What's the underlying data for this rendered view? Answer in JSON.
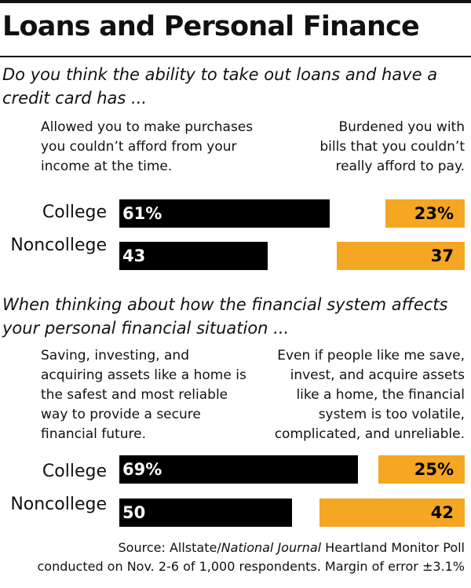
{
  "title": "Loans and Personal Finance",
  "source": {
    "prefix": "Source: Allstate/",
    "italic": "National Journal",
    "suffix": " Heartland Monitor Poll",
    "line2": "conducted on Nov. 2-6 of 1,000 respondents. Margin of error ±3.1%"
  },
  "colors": {
    "left_bar": "#000000",
    "right_bar": "#f5a623"
  },
  "chart_data": [
    {
      "type": "bar",
      "title": "Do you think the ability to take out loans and have a credit card has ...",
      "categories": [
        "College",
        "Noncollege"
      ],
      "series": [
        {
          "name": "Allowed you to make purchases you couldn’t afford from your income at the time.",
          "values": [
            61,
            43
          ],
          "labels": [
            "61%",
            "43"
          ]
        },
        {
          "name": "Burdened you with bills that you couldn’t really afford to pay.",
          "values": [
            23,
            37
          ],
          "labels": [
            "23%",
            "37"
          ]
        }
      ],
      "unit": "%"
    },
    {
      "type": "bar",
      "title": "When thinking about how the financial system affects your personal financial situation ...",
      "categories": [
        "College",
        "Noncollege"
      ],
      "series": [
        {
          "name": "Saving, investing, and acquiring assets like a home is the safest and most reliable way to provide a secure financial future.",
          "values": [
            69,
            50
          ],
          "labels": [
            "69%",
            "50"
          ]
        },
        {
          "name": "Even if people like me save, invest, and acquire assets like a home, the financial system is too volatile, complicated, and unreliable.",
          "values": [
            25,
            42
          ],
          "labels": [
            "25%",
            "42"
          ]
        }
      ],
      "unit": "%"
    }
  ]
}
